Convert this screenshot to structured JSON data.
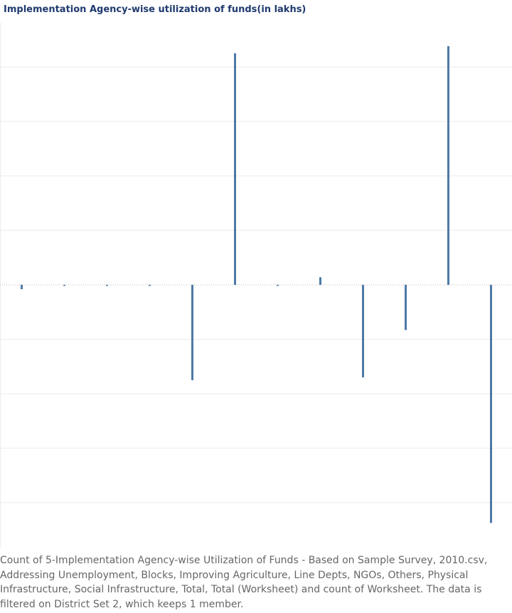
{
  "title": "Implementation Agency-wise utilization of funds(in lakhs)",
  "colors": {
    "bar": "#4e79a7",
    "grid": "#ececec",
    "zero_line": "#b7b7b7",
    "title": "#1f3a6e",
    "caption": "#666666"
  },
  "chart_data": {
    "type": "bar",
    "title": "Implementation Agency-wise utilization of funds(in lakhs)",
    "xlabel": "",
    "ylabel": "",
    "grid": true,
    "categories": [
      "",
      "",
      "",
      "",
      "",
      "",
      "",
      "",
      "",
      "",
      "",
      ""
    ],
    "values": [
      -0.08,
      -0.01,
      -0.01,
      -0.01,
      -1.75,
      4.25,
      -0.01,
      0.14,
      -1.7,
      -0.83,
      4.38,
      -4.37
    ],
    "ylim": [
      -4.8,
      4.6
    ]
  },
  "caption": "Count of 5-Implementation Agency-wise Utilization of Funds - Based on Sample Survey, 2010.csv, Addressing Unemployment, Blocks, Improving Agriculture, Line Depts, NGOs, Others, Physical Infrastructure, Social Infrastructure, Total, Total (Worksheet) and count of Worksheet. The data is filtered on District Set 2, which keeps 1 member."
}
